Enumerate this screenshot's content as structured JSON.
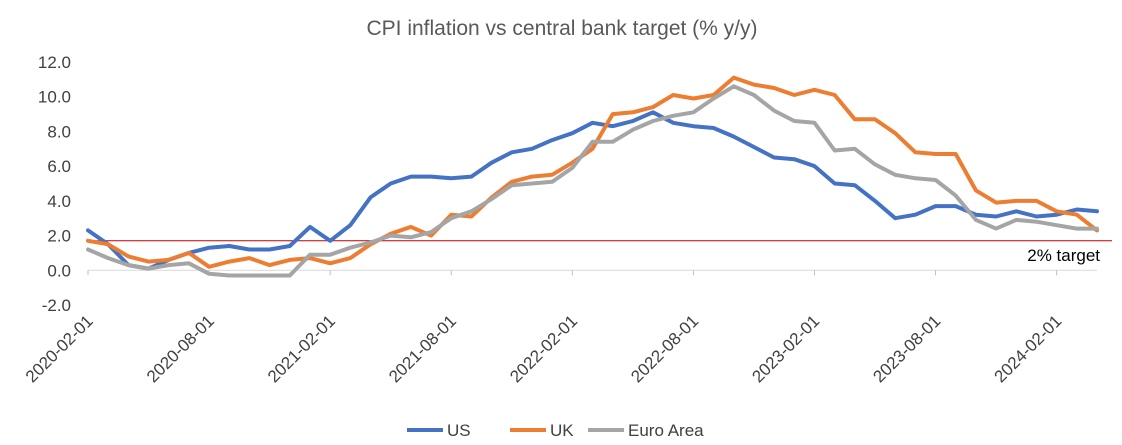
{
  "chart_data": {
    "type": "line",
    "title": "CPI inflation vs central bank target (% y/y)",
    "xlabel": "",
    "ylabel": "",
    "ylim": [
      -2.0,
      12.0
    ],
    "yticks": [
      "-2.0",
      "0.0",
      "2.0",
      "4.0",
      "6.0",
      "8.0",
      "10.0",
      "12.0"
    ],
    "ytick_values": [
      -2,
      0,
      2,
      4,
      6,
      8,
      10,
      12
    ],
    "x": [
      "2020-02",
      "2020-03",
      "2020-04",
      "2020-05",
      "2020-06",
      "2020-07",
      "2020-08",
      "2020-09",
      "2020-10",
      "2020-11",
      "2020-12",
      "2021-01",
      "2021-02",
      "2021-03",
      "2021-04",
      "2021-05",
      "2021-06",
      "2021-07",
      "2021-08",
      "2021-09",
      "2021-10",
      "2021-11",
      "2021-12",
      "2022-01",
      "2022-02",
      "2022-03",
      "2022-04",
      "2022-05",
      "2022-06",
      "2022-07",
      "2022-08",
      "2022-09",
      "2022-10",
      "2022-11",
      "2022-12",
      "2023-01",
      "2023-02",
      "2023-03",
      "2023-04",
      "2023-05",
      "2023-06",
      "2023-07",
      "2023-08",
      "2023-09",
      "2023-10",
      "2023-11",
      "2023-12",
      "2024-01",
      "2024-02",
      "2024-03",
      "2024-04"
    ],
    "xtick_labels": [
      "2020-02-01",
      "2020-08-01",
      "2021-02-01",
      "2021-08-01",
      "2022-02-01",
      "2022-08-01",
      "2023-02-01",
      "2023-08-01",
      "2024-02-01"
    ],
    "xtick_index": [
      0,
      6,
      12,
      18,
      24,
      30,
      36,
      42,
      48
    ],
    "series": [
      {
        "name": "US",
        "color": "#4472C4",
        "values": [
          2.3,
          1.5,
          0.3,
          0.1,
          0.6,
          1.0,
          1.3,
          1.4,
          1.2,
          1.2,
          1.4,
          2.5,
          1.7,
          2.6,
          4.2,
          5.0,
          5.4,
          5.4,
          5.3,
          5.4,
          6.2,
          6.8,
          7.0,
          7.5,
          7.9,
          8.5,
          8.3,
          8.6,
          9.1,
          8.5,
          8.3,
          8.2,
          7.7,
          7.1,
          6.5,
          6.4,
          6.0,
          5.0,
          4.9,
          4.0,
          3.0,
          3.2,
          3.7,
          3.7,
          3.2,
          3.1,
          3.4,
          3.1,
          3.2,
          3.5,
          3.4
        ]
      },
      {
        "name": "UK",
        "color": "#ED7D31",
        "values": [
          1.7,
          1.5,
          0.8,
          0.5,
          0.6,
          1.0,
          0.2,
          0.5,
          0.7,
          0.3,
          0.6,
          0.7,
          0.4,
          0.7,
          1.5,
          2.1,
          2.5,
          2.0,
          3.2,
          3.1,
          4.2,
          5.1,
          5.4,
          5.5,
          6.2,
          7.0,
          9.0,
          9.1,
          9.4,
          10.1,
          9.9,
          10.1,
          11.1,
          10.7,
          10.5,
          10.1,
          10.4,
          10.1,
          8.7,
          8.7,
          7.9,
          6.8,
          6.7,
          6.7,
          4.6,
          3.9,
          4.0,
          4.0,
          3.4,
          3.2,
          2.3
        ]
      },
      {
        "name": "Euro Area",
        "color": "#A5A5A5",
        "values": [
          1.2,
          0.7,
          0.3,
          0.1,
          0.3,
          0.4,
          -0.2,
          -0.3,
          -0.3,
          -0.3,
          -0.3,
          0.9,
          0.9,
          1.3,
          1.6,
          2.0,
          1.9,
          2.2,
          3.0,
          3.4,
          4.1,
          4.9,
          5.0,
          5.1,
          5.9,
          7.4,
          7.4,
          8.1,
          8.6,
          8.9,
          9.1,
          9.9,
          10.6,
          10.1,
          9.2,
          8.6,
          8.5,
          6.9,
          7.0,
          6.1,
          5.5,
          5.3,
          5.2,
          4.3,
          2.9,
          2.4,
          2.9,
          2.8,
          2.6,
          2.4,
          2.4
        ]
      }
    ],
    "reference_line": {
      "value": 1.7,
      "label": "2% target",
      "color": "#C00000"
    },
    "legend": [
      "US",
      "UK",
      "Euro Area"
    ],
    "legend_position": "bottom",
    "grid": false
  }
}
